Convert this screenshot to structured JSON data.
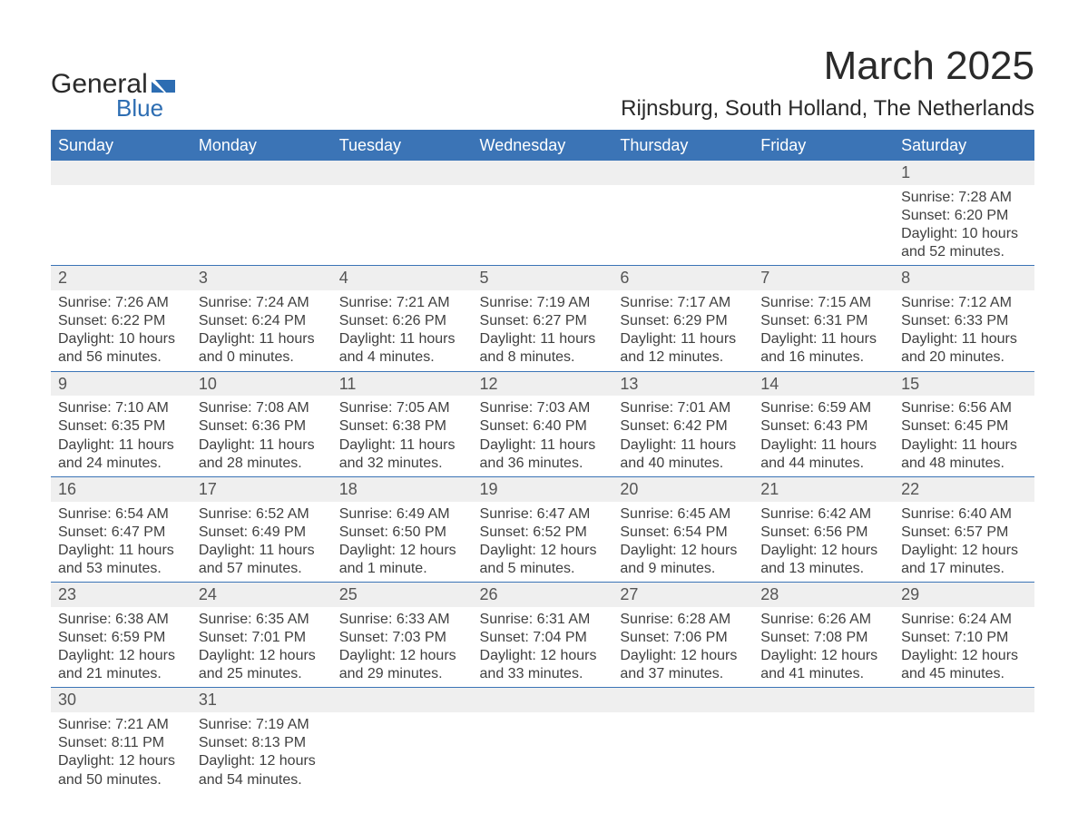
{
  "logo": {
    "word1": "General",
    "word2": "Blue",
    "flag_color": "#2d6db2",
    "text_color_dark": "#2a2a2a",
    "text_color_blue": "#2d6db2"
  },
  "header": {
    "title": "March 2025",
    "location": "Rijnsburg, South Holland, The Netherlands",
    "title_fontsize": 44,
    "location_fontsize": 24,
    "text_color": "#2a2a2a"
  },
  "calendar": {
    "type": "table",
    "header_bg": "#3b74b6",
    "header_fg": "#ffffff",
    "daynum_bg": "#efefef",
    "row_divider_color": "#3b74b6",
    "body_fg": "#404040",
    "background_color": "#ffffff",
    "cell_fontsize": 16,
    "daynum_fontsize": 18,
    "columns": [
      "Sunday",
      "Monday",
      "Tuesday",
      "Wednesday",
      "Thursday",
      "Friday",
      "Saturday"
    ],
    "weeks": [
      [
        null,
        null,
        null,
        null,
        null,
        null,
        {
          "n": "1",
          "sunrise": "Sunrise: 7:28 AM",
          "sunset": "Sunset: 6:20 PM",
          "d1": "Daylight: 10 hours",
          "d2": "and 52 minutes."
        }
      ],
      [
        {
          "n": "2",
          "sunrise": "Sunrise: 7:26 AM",
          "sunset": "Sunset: 6:22 PM",
          "d1": "Daylight: 10 hours",
          "d2": "and 56 minutes."
        },
        {
          "n": "3",
          "sunrise": "Sunrise: 7:24 AM",
          "sunset": "Sunset: 6:24 PM",
          "d1": "Daylight: 11 hours",
          "d2": "and 0 minutes."
        },
        {
          "n": "4",
          "sunrise": "Sunrise: 7:21 AM",
          "sunset": "Sunset: 6:26 PM",
          "d1": "Daylight: 11 hours",
          "d2": "and 4 minutes."
        },
        {
          "n": "5",
          "sunrise": "Sunrise: 7:19 AM",
          "sunset": "Sunset: 6:27 PM",
          "d1": "Daylight: 11 hours",
          "d2": "and 8 minutes."
        },
        {
          "n": "6",
          "sunrise": "Sunrise: 7:17 AM",
          "sunset": "Sunset: 6:29 PM",
          "d1": "Daylight: 11 hours",
          "d2": "and 12 minutes."
        },
        {
          "n": "7",
          "sunrise": "Sunrise: 7:15 AM",
          "sunset": "Sunset: 6:31 PM",
          "d1": "Daylight: 11 hours",
          "d2": "and 16 minutes."
        },
        {
          "n": "8",
          "sunrise": "Sunrise: 7:12 AM",
          "sunset": "Sunset: 6:33 PM",
          "d1": "Daylight: 11 hours",
          "d2": "and 20 minutes."
        }
      ],
      [
        {
          "n": "9",
          "sunrise": "Sunrise: 7:10 AM",
          "sunset": "Sunset: 6:35 PM",
          "d1": "Daylight: 11 hours",
          "d2": "and 24 minutes."
        },
        {
          "n": "10",
          "sunrise": "Sunrise: 7:08 AM",
          "sunset": "Sunset: 6:36 PM",
          "d1": "Daylight: 11 hours",
          "d2": "and 28 minutes."
        },
        {
          "n": "11",
          "sunrise": "Sunrise: 7:05 AM",
          "sunset": "Sunset: 6:38 PM",
          "d1": "Daylight: 11 hours",
          "d2": "and 32 minutes."
        },
        {
          "n": "12",
          "sunrise": "Sunrise: 7:03 AM",
          "sunset": "Sunset: 6:40 PM",
          "d1": "Daylight: 11 hours",
          "d2": "and 36 minutes."
        },
        {
          "n": "13",
          "sunrise": "Sunrise: 7:01 AM",
          "sunset": "Sunset: 6:42 PM",
          "d1": "Daylight: 11 hours",
          "d2": "and 40 minutes."
        },
        {
          "n": "14",
          "sunrise": "Sunrise: 6:59 AM",
          "sunset": "Sunset: 6:43 PM",
          "d1": "Daylight: 11 hours",
          "d2": "and 44 minutes."
        },
        {
          "n": "15",
          "sunrise": "Sunrise: 6:56 AM",
          "sunset": "Sunset: 6:45 PM",
          "d1": "Daylight: 11 hours",
          "d2": "and 48 minutes."
        }
      ],
      [
        {
          "n": "16",
          "sunrise": "Sunrise: 6:54 AM",
          "sunset": "Sunset: 6:47 PM",
          "d1": "Daylight: 11 hours",
          "d2": "and 53 minutes."
        },
        {
          "n": "17",
          "sunrise": "Sunrise: 6:52 AM",
          "sunset": "Sunset: 6:49 PM",
          "d1": "Daylight: 11 hours",
          "d2": "and 57 minutes."
        },
        {
          "n": "18",
          "sunrise": "Sunrise: 6:49 AM",
          "sunset": "Sunset: 6:50 PM",
          "d1": "Daylight: 12 hours",
          "d2": "and 1 minute."
        },
        {
          "n": "19",
          "sunrise": "Sunrise: 6:47 AM",
          "sunset": "Sunset: 6:52 PM",
          "d1": "Daylight: 12 hours",
          "d2": "and 5 minutes."
        },
        {
          "n": "20",
          "sunrise": "Sunrise: 6:45 AM",
          "sunset": "Sunset: 6:54 PM",
          "d1": "Daylight: 12 hours",
          "d2": "and 9 minutes."
        },
        {
          "n": "21",
          "sunrise": "Sunrise: 6:42 AM",
          "sunset": "Sunset: 6:56 PM",
          "d1": "Daylight: 12 hours",
          "d2": "and 13 minutes."
        },
        {
          "n": "22",
          "sunrise": "Sunrise: 6:40 AM",
          "sunset": "Sunset: 6:57 PM",
          "d1": "Daylight: 12 hours",
          "d2": "and 17 minutes."
        }
      ],
      [
        {
          "n": "23",
          "sunrise": "Sunrise: 6:38 AM",
          "sunset": "Sunset: 6:59 PM",
          "d1": "Daylight: 12 hours",
          "d2": "and 21 minutes."
        },
        {
          "n": "24",
          "sunrise": "Sunrise: 6:35 AM",
          "sunset": "Sunset: 7:01 PM",
          "d1": "Daylight: 12 hours",
          "d2": "and 25 minutes."
        },
        {
          "n": "25",
          "sunrise": "Sunrise: 6:33 AM",
          "sunset": "Sunset: 7:03 PM",
          "d1": "Daylight: 12 hours",
          "d2": "and 29 minutes."
        },
        {
          "n": "26",
          "sunrise": "Sunrise: 6:31 AM",
          "sunset": "Sunset: 7:04 PM",
          "d1": "Daylight: 12 hours",
          "d2": "and 33 minutes."
        },
        {
          "n": "27",
          "sunrise": "Sunrise: 6:28 AM",
          "sunset": "Sunset: 7:06 PM",
          "d1": "Daylight: 12 hours",
          "d2": "and 37 minutes."
        },
        {
          "n": "28",
          "sunrise": "Sunrise: 6:26 AM",
          "sunset": "Sunset: 7:08 PM",
          "d1": "Daylight: 12 hours",
          "d2": "and 41 minutes."
        },
        {
          "n": "29",
          "sunrise": "Sunrise: 6:24 AM",
          "sunset": "Sunset: 7:10 PM",
          "d1": "Daylight: 12 hours",
          "d2": "and 45 minutes."
        }
      ],
      [
        {
          "n": "30",
          "sunrise": "Sunrise: 7:21 AM",
          "sunset": "Sunset: 8:11 PM",
          "d1": "Daylight: 12 hours",
          "d2": "and 50 minutes."
        },
        {
          "n": "31",
          "sunrise": "Sunrise: 7:19 AM",
          "sunset": "Sunset: 8:13 PM",
          "d1": "Daylight: 12 hours",
          "d2": "and 54 minutes."
        },
        null,
        null,
        null,
        null,
        null
      ]
    ]
  }
}
